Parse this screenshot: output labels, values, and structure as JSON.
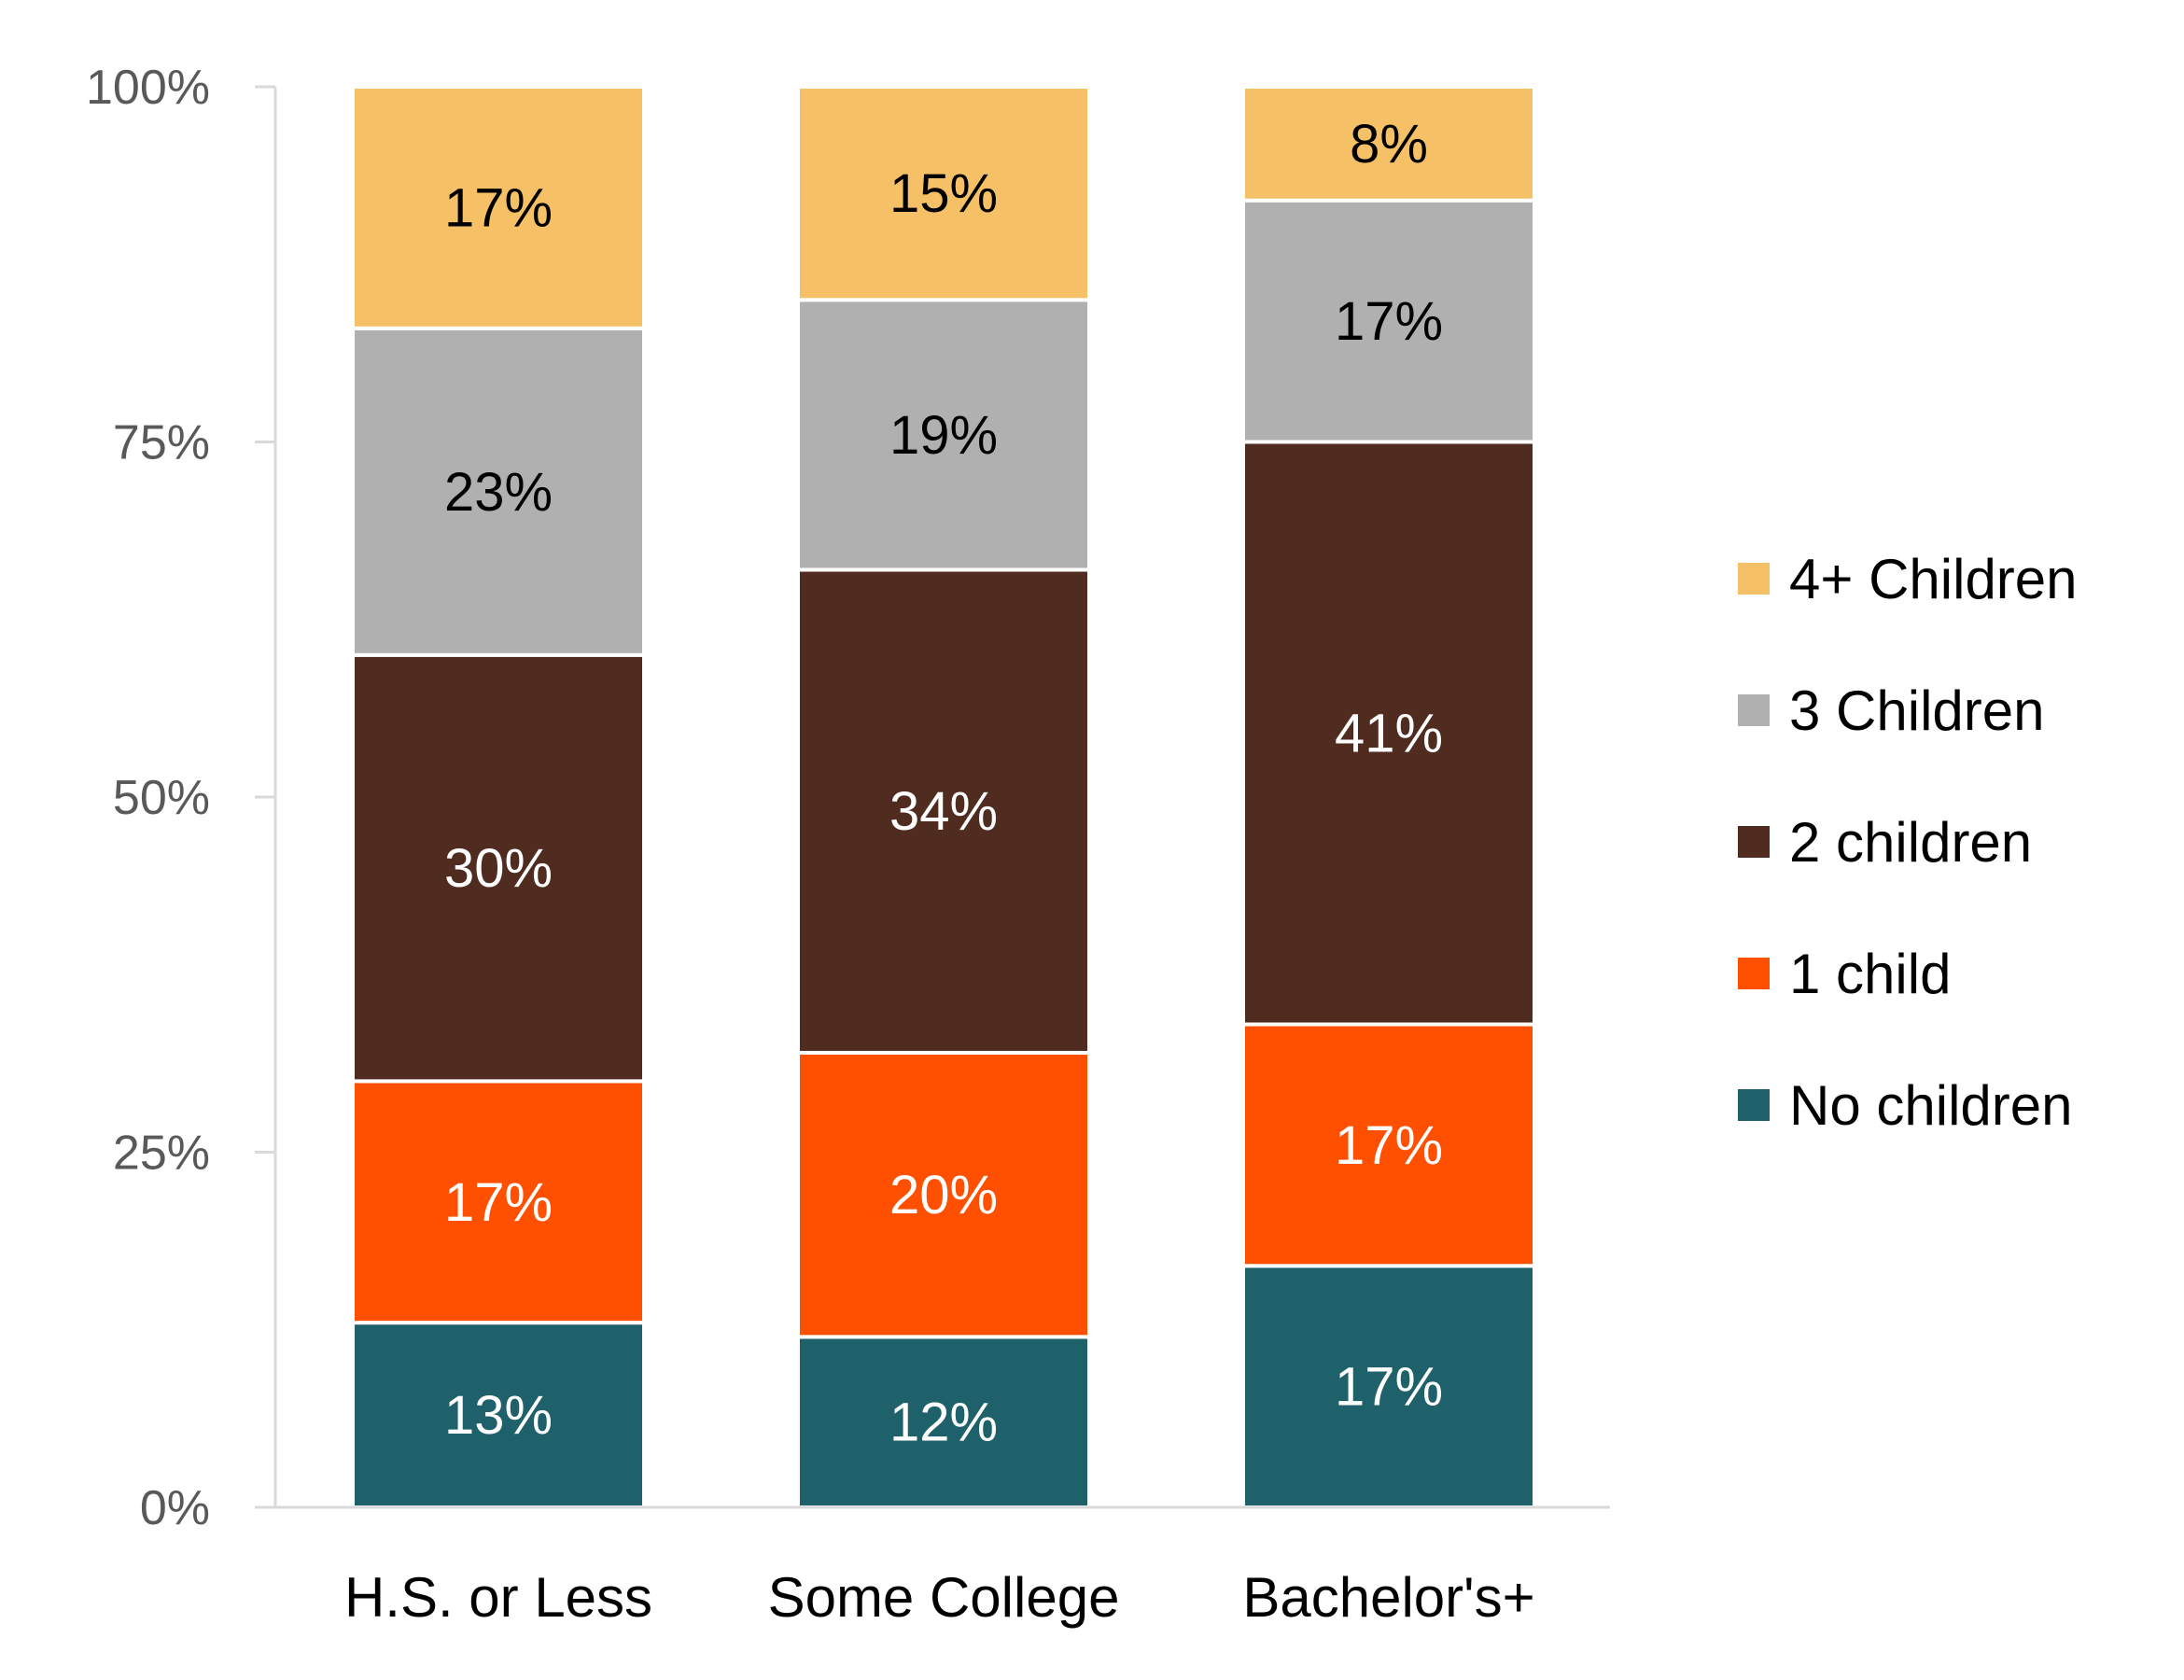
{
  "chart_data": {
    "type": "bar",
    "stacked": true,
    "title": "",
    "xlabel": "",
    "ylabel": "",
    "ylim": [
      0,
      100
    ],
    "y_ticks": [
      0,
      25,
      50,
      75,
      100
    ],
    "y_tick_labels": [
      "0%",
      "25%",
      "50%",
      "75%",
      "100%"
    ],
    "grid": false,
    "legend_position": "right",
    "categories": [
      "H.S. or Less",
      "Some College",
      "Bachelor's+"
    ],
    "series": [
      {
        "name": "No children",
        "color": "#1f616b",
        "label_color": "#ffffff",
        "values": [
          13,
          12,
          17
        ],
        "labels": [
          "13%",
          "12%",
          "17%"
        ]
      },
      {
        "name": "1 child",
        "color": "#fe5000",
        "label_color": "#ffffff",
        "values": [
          17,
          20,
          17
        ],
        "labels": [
          "17%",
          "20%",
          "17%"
        ]
      },
      {
        "name": "2 children",
        "color": "#4f2c1f",
        "label_color": "#ffffff",
        "values": [
          30,
          34,
          41
        ],
        "labels": [
          "30%",
          "34%",
          "41%"
        ]
      },
      {
        "name": "3 Children",
        "color": "#b0b0b0",
        "label_color": "#000000",
        "values": [
          23,
          19,
          17
        ],
        "labels": [
          "23%",
          "19%",
          "17%"
        ]
      },
      {
        "name": "4+ Children",
        "color": "#f5c066",
        "label_color": "#000000",
        "values": [
          17,
          15,
          8
        ],
        "labels": [
          "17%",
          "15%",
          "8%"
        ]
      }
    ],
    "legend_order": [
      "4+ Children",
      "3 Children",
      "2 children",
      "1 child",
      "No children"
    ]
  }
}
